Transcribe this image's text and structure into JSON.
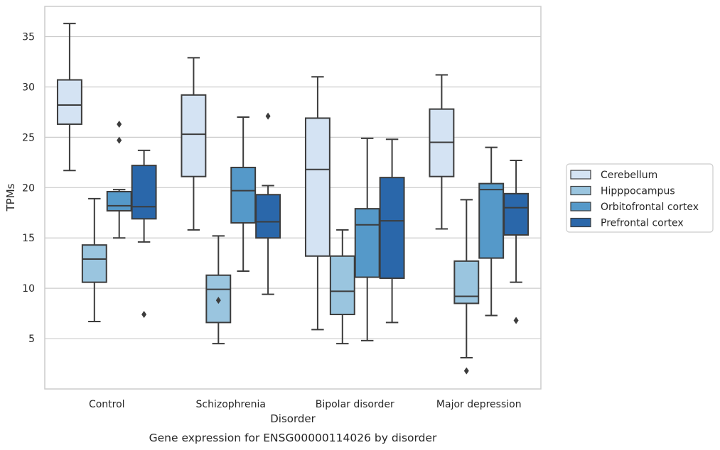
{
  "chart_data": {
    "type": "box",
    "caption": "Gene expression for ENSG00000114026 by disorder",
    "xlabel": "Disorder",
    "ylabel": "TPMs",
    "ylim": [
      0,
      38
    ],
    "yticks": [
      5,
      10,
      15,
      20,
      25,
      30,
      35
    ],
    "grid": "horizontal",
    "legend_position": "right",
    "categories": [
      "Control",
      "Schizophrenia",
      "Bipolar disorder",
      "Major depression"
    ],
    "series": [
      {
        "name": "Cerebellum",
        "color": "#d4e3f3",
        "boxes": [
          {
            "whislo": 21.7,
            "q1": 26.3,
            "med": 28.2,
            "q3": 30.7,
            "whishi": 36.3,
            "fliers": []
          },
          {
            "whislo": 15.8,
            "q1": 21.1,
            "med": 25.3,
            "q3": 29.2,
            "whishi": 32.9,
            "fliers": []
          },
          {
            "whislo": 5.9,
            "q1": 13.2,
            "med": 21.8,
            "q3": 26.9,
            "whishi": 31.0,
            "fliers": []
          },
          {
            "whislo": 15.9,
            "q1": 21.1,
            "med": 24.5,
            "q3": 27.8,
            "whishi": 31.2,
            "fliers": []
          }
        ]
      },
      {
        "name": "Hipppocampus",
        "color": "#9ac5df",
        "boxes": [
          {
            "whislo": 6.7,
            "q1": 10.6,
            "med": 12.9,
            "q3": 14.3,
            "whishi": 18.9,
            "fliers": []
          },
          {
            "whislo": 4.5,
            "q1": 6.6,
            "med": 9.9,
            "q3": 11.3,
            "whishi": 15.2,
            "fliers": [
              8.8
            ]
          },
          {
            "whislo": 4.5,
            "q1": 7.4,
            "med": 9.7,
            "q3": 13.2,
            "whishi": 15.8,
            "fliers": []
          },
          {
            "whislo": 3.1,
            "q1": 8.5,
            "med": 9.2,
            "q3": 12.7,
            "whishi": 18.8,
            "fliers": [
              1.8
            ]
          }
        ]
      },
      {
        "name": "Orbitofrontal cortex",
        "color": "#5599c9",
        "boxes": [
          {
            "whislo": 15.0,
            "q1": 17.7,
            "med": 18.2,
            "q3": 19.6,
            "whishi": 19.8,
            "fliers": [
              24.7,
              26.3
            ]
          },
          {
            "whislo": 11.7,
            "q1": 16.5,
            "med": 19.7,
            "q3": 22.0,
            "whishi": 27.0,
            "fliers": []
          },
          {
            "whislo": 4.8,
            "q1": 11.1,
            "med": 16.3,
            "q3": 17.9,
            "whishi": 24.9,
            "fliers": []
          },
          {
            "whislo": 7.3,
            "q1": 13.0,
            "med": 19.8,
            "q3": 20.4,
            "whishi": 24.0,
            "fliers": []
          }
        ]
      },
      {
        "name": "Prefrontal cortex",
        "color": "#2a67aa",
        "boxes": [
          {
            "whislo": 14.6,
            "q1": 16.9,
            "med": 18.1,
            "q3": 22.2,
            "whishi": 23.7,
            "fliers": [
              7.4
            ]
          },
          {
            "whislo": 9.4,
            "q1": 15.0,
            "med": 16.6,
            "q3": 19.3,
            "whishi": 20.2,
            "fliers": [
              27.1
            ]
          },
          {
            "whislo": 6.6,
            "q1": 11.0,
            "med": 16.7,
            "q3": 21.0,
            "whishi": 24.8,
            "fliers": []
          },
          {
            "whislo": 10.6,
            "q1": 15.3,
            "med": 18.0,
            "q3": 19.4,
            "whishi": 22.7,
            "fliers": [
              6.8
            ]
          }
        ]
      }
    ]
  }
}
